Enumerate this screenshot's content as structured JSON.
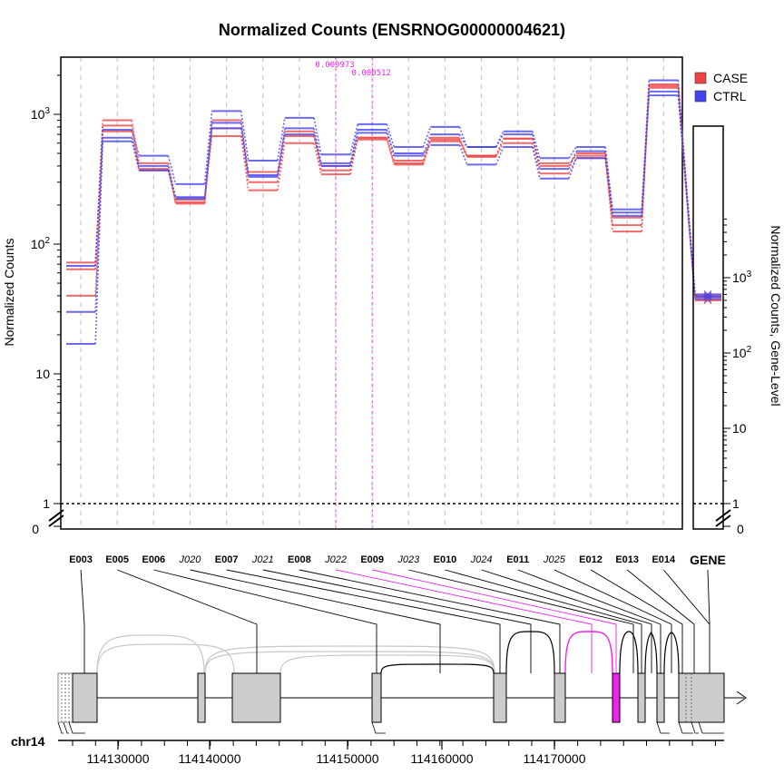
{
  "chart_data": {
    "type": "line",
    "title": "Normalized Counts (ENSRNOG00000004621)",
    "ylabel": "Normalized Counts",
    "ylabel_right": "Normalized Counts, Gene-Level",
    "yscale": "log",
    "ylim": [
      1,
      2500
    ],
    "y_ticks": [
      "1",
      "10",
      "10",
      "10"
    ],
    "y_tick_exps": [
      "",
      "",
      "2",
      "3"
    ],
    "y_zero_label": "0",
    "legend": {
      "placement": "top-right",
      "entries": [
        {
          "name": "CASE",
          "color": "#ee4444"
        },
        {
          "name": "CTRL",
          "color": "#4444ee"
        }
      ]
    },
    "features": [
      {
        "id": "E003",
        "type": "exon"
      },
      {
        "id": "E005",
        "type": "exon"
      },
      {
        "id": "E006",
        "type": "exon"
      },
      {
        "id": "J020",
        "type": "junction"
      },
      {
        "id": "E007",
        "type": "exon"
      },
      {
        "id": "J021",
        "type": "junction"
      },
      {
        "id": "E008",
        "type": "exon"
      },
      {
        "id": "J022",
        "type": "junction"
      },
      {
        "id": "E009",
        "type": "exon"
      },
      {
        "id": "J023",
        "type": "junction"
      },
      {
        "id": "E010",
        "type": "exon"
      },
      {
        "id": "J024",
        "type": "junction"
      },
      {
        "id": "E011",
        "type": "exon"
      },
      {
        "id": "J025",
        "type": "junction"
      },
      {
        "id": "E012",
        "type": "exon"
      },
      {
        "id": "E013",
        "type": "exon"
      },
      {
        "id": "E014",
        "type": "exon"
      }
    ],
    "gene_label": "GENE",
    "series": [
      {
        "group": "CASE",
        "color": "#ee4444",
        "values": [
          72,
          900,
          420,
          210,
          900,
          360,
          740,
          400,
          660,
          420,
          660,
          480,
          650,
          400,
          500,
          160,
          1650
        ]
      },
      {
        "group": "CASE",
        "color": "#ee4444",
        "values": [
          64,
          820,
          380,
          205,
          780,
          300,
          680,
          370,
          640,
          410,
          620,
          470,
          600,
          350,
          460,
          140,
          1600
        ]
      },
      {
        "group": "CASE",
        "color": "#ee4444",
        "values": [
          40,
          740,
          370,
          220,
          680,
          260,
          600,
          345,
          660,
          440,
          640,
          480,
          650,
          420,
          480,
          125,
          1700
        ]
      },
      {
        "group": "CTRL",
        "color": "#4444ee",
        "values": [
          68,
          760,
          480,
          290,
          1060,
          440,
          940,
          490,
          840,
          560,
          800,
          560,
          740,
          460,
          560,
          185,
          1830
        ]
      },
      {
        "group": "CTRL",
        "color": "#4444ee",
        "values": [
          30,
          660,
          400,
          230,
          860,
          330,
          780,
          420,
          760,
          480,
          700,
          560,
          700,
          380,
          520,
          165,
          1500
        ]
      },
      {
        "group": "CTRL",
        "color": "#4444ee",
        "values": [
          17,
          620,
          370,
          225,
          780,
          340,
          700,
          400,
          720,
          500,
          580,
          410,
          560,
          320,
          460,
          175,
          1400
        ]
      }
    ],
    "gene_level": {
      "ylim": [
        1,
        6500
      ],
      "y_ticks": [
        "1",
        "10",
        "10",
        "10"
      ],
      "y_tick_exps": [
        "",
        "",
        "2",
        "3"
      ],
      "y_zero_label": "0",
      "values": [
        {
          "group": "CASE",
          "value": 500
        },
        {
          "group": "CASE",
          "value": 550
        },
        {
          "group": "CASE",
          "value": 580
        },
        {
          "group": "CTRL",
          "value": 600
        },
        {
          "group": "CTRL",
          "value": 560
        },
        {
          "group": "CTRL",
          "value": 520
        }
      ]
    },
    "highlighted": [
      {
        "feature": "J022",
        "pvalue": "0.009973"
      },
      {
        "feature": "E009",
        "pvalue": "0.000512"
      }
    ],
    "gene_model": {
      "chromosome": "chr14",
      "x_ticks": [
        "114130000",
        "114140000",
        "114150000",
        "114160000",
        "114170000"
      ],
      "highlight_color": "#ee22ee"
    }
  }
}
